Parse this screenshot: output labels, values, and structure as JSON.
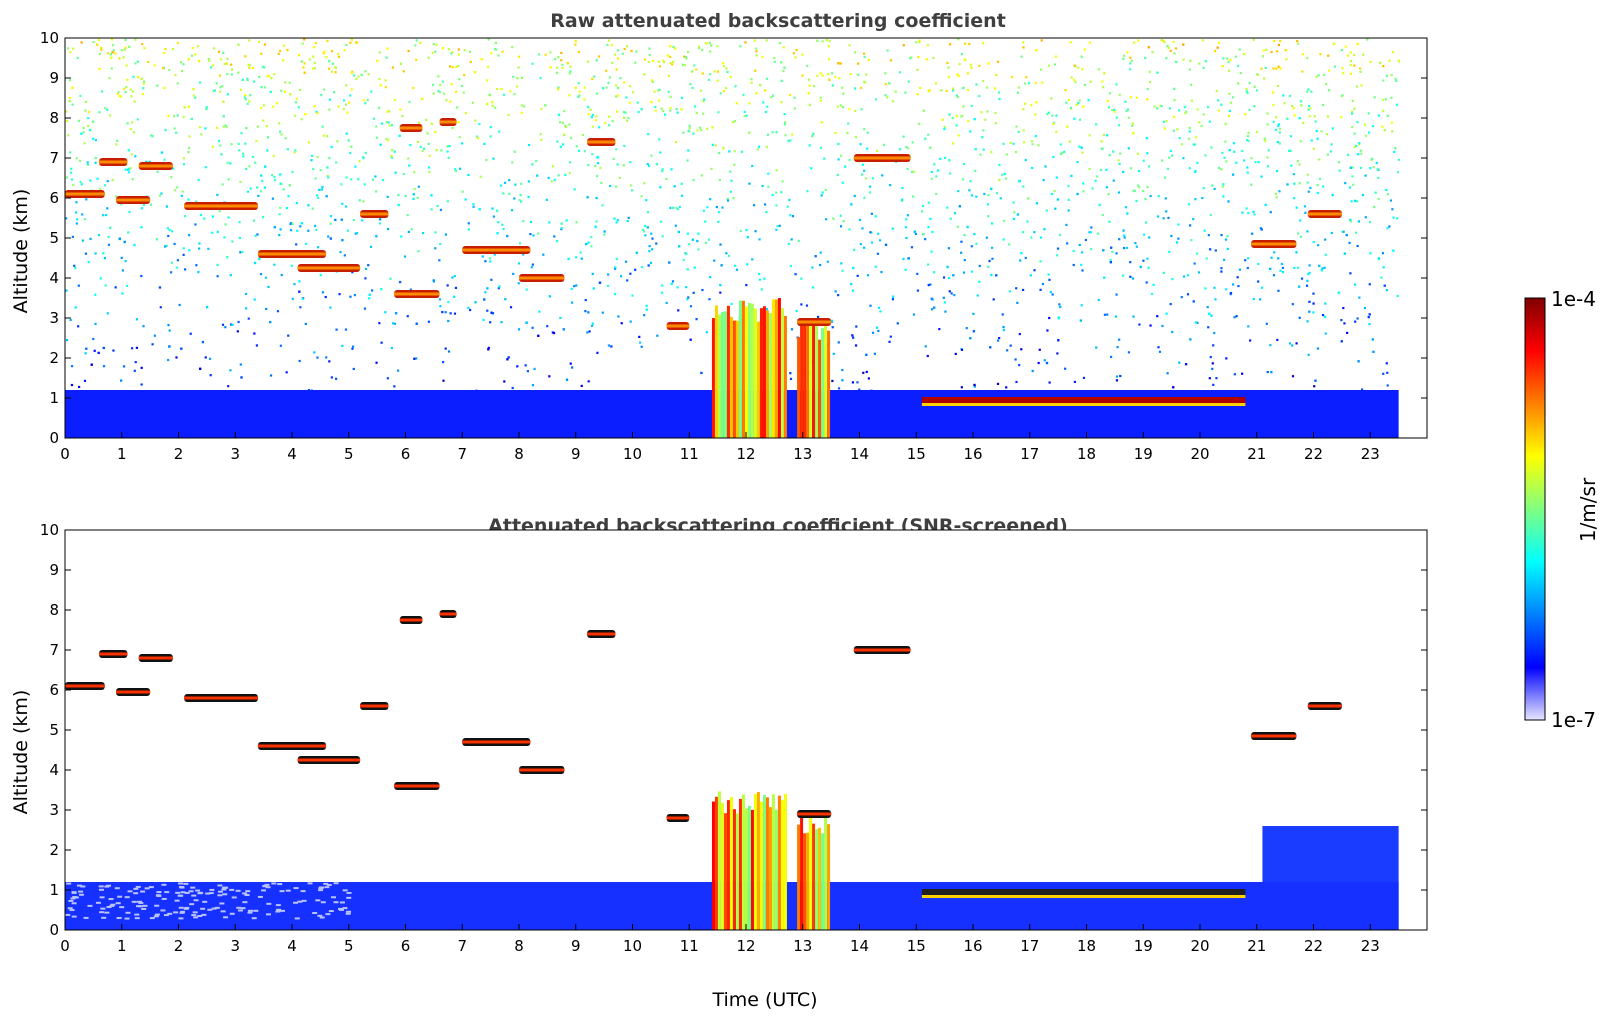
{
  "chart_data": [
    {
      "type": "heatmap",
      "title": "Raw attenuated backscattering coefficient",
      "xlabel": "",
      "ylabel": "Altitude (km)",
      "xlim": [
        0,
        24
      ],
      "ylim": [
        0,
        10
      ],
      "xticks": [
        "0",
        "1",
        "2",
        "3",
        "4",
        "5",
        "6",
        "7",
        "8",
        "9",
        "10",
        "11",
        "12",
        "13",
        "14",
        "15",
        "16",
        "17",
        "18",
        "19",
        "20",
        "21",
        "22",
        "23"
      ],
      "yticks": [
        "0",
        "1",
        "2",
        "3",
        "4",
        "5",
        "6",
        "7",
        "8",
        "9",
        "10"
      ],
      "colorscale": "jet, log",
      "features": {
        "boundary_layer": {
          "t0": 0,
          "t1": 23.5,
          "top_km": 1.2
        },
        "precipitation_streaks": [
          {
            "t0": 11.4,
            "t1": 12.7,
            "top_km": 3.5
          },
          {
            "t0": 12.9,
            "t1": 13.5,
            "top_km": 3.0
          }
        ],
        "low_cloud_layer": {
          "t0": 15.1,
          "t1": 20.8,
          "alt_km": 0.95
        },
        "cloud_segments": [
          {
            "t0": 0.0,
            "t1": 0.7,
            "alt_km": 6.1
          },
          {
            "t0": 0.6,
            "t1": 1.1,
            "alt_km": 6.9
          },
          {
            "t0": 1.3,
            "t1": 1.9,
            "alt_km": 6.8
          },
          {
            "t0": 0.9,
            "t1": 1.5,
            "alt_km": 5.95
          },
          {
            "t0": 2.1,
            "t1": 3.4,
            "alt_km": 5.8
          },
          {
            "t0": 3.4,
            "t1": 4.6,
            "alt_km": 4.6
          },
          {
            "t0": 4.1,
            "t1": 5.2,
            "alt_km": 4.25
          },
          {
            "t0": 5.2,
            "t1": 5.7,
            "alt_km": 5.6
          },
          {
            "t0": 5.9,
            "t1": 6.3,
            "alt_km": 7.75
          },
          {
            "t0": 6.6,
            "t1": 6.9,
            "alt_km": 7.9
          },
          {
            "t0": 5.8,
            "t1": 6.6,
            "alt_km": 3.6
          },
          {
            "t0": 7.0,
            "t1": 8.2,
            "alt_km": 4.7
          },
          {
            "t0": 8.0,
            "t1": 8.8,
            "alt_km": 4.0
          },
          {
            "t0": 9.2,
            "t1": 9.7,
            "alt_km": 7.4
          },
          {
            "t0": 10.6,
            "t1": 11.0,
            "alt_km": 2.8
          },
          {
            "t0": 12.9,
            "t1": 13.5,
            "alt_km": 2.9
          },
          {
            "t0": 13.9,
            "t1": 14.9,
            "alt_km": 7.0
          },
          {
            "t0": 20.9,
            "t1": 21.7,
            "alt_km": 4.85
          },
          {
            "t0": 21.9,
            "t1": 22.5,
            "alt_km": 5.6
          }
        ]
      }
    },
    {
      "type": "heatmap",
      "title": "Attenuated backscattering coefficient (SNR-screened)",
      "xlabel": "Time (UTC)",
      "ylabel": "Altitude (km)",
      "xlim": [
        0,
        24
      ],
      "ylim": [
        0,
        10
      ],
      "xticks": [
        "0",
        "1",
        "2",
        "3",
        "4",
        "5",
        "6",
        "7",
        "8",
        "9",
        "10",
        "11",
        "12",
        "13",
        "14",
        "15",
        "16",
        "17",
        "18",
        "19",
        "20",
        "21",
        "22",
        "23"
      ],
      "yticks": [
        "0",
        "1",
        "2",
        "3",
        "4",
        "5",
        "6",
        "7",
        "8",
        "9",
        "10"
      ],
      "colorscale": "jet, log"
    }
  ],
  "colorbar": {
    "label": "1/m/sr",
    "max_label": "1e-4",
    "min_label": "1e-7",
    "colors": [
      "#e6e6ff",
      "#0000ff",
      "#0080ff",
      "#00ffff",
      "#80ff80",
      "#ffff00",
      "#ff8000",
      "#ff0000",
      "#800000"
    ]
  }
}
